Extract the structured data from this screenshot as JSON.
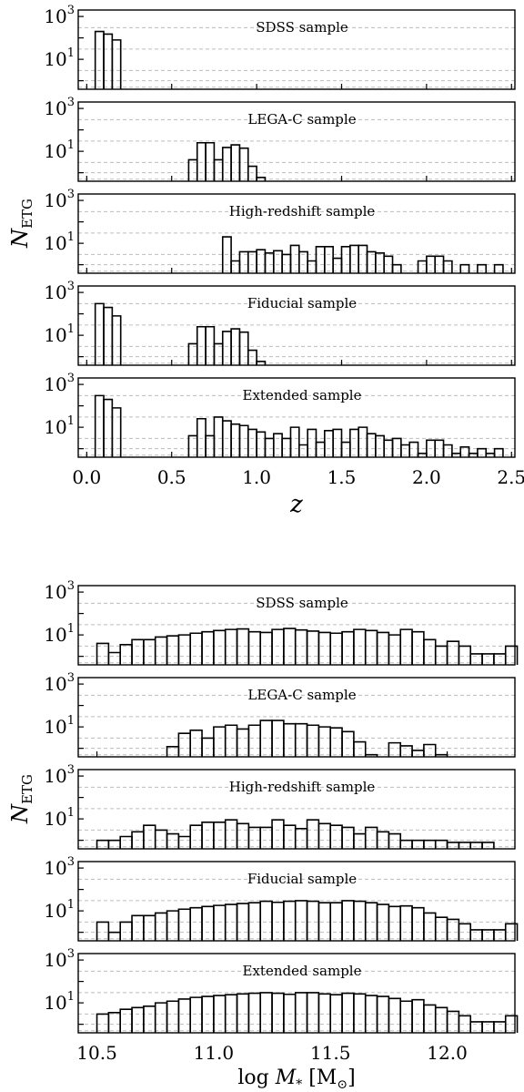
{
  "chart_data": [
    {
      "type": "histogram",
      "title": "",
      "xlabel": "z",
      "ylabel": "N_ETG",
      "ylabel_main": "N",
      "ylabel_sub": "ETG",
      "xlim": [
        -0.05,
        2.52
      ],
      "ylim": [
        0.4,
        2000
      ],
      "yscale": "log",
      "xticks": [
        "0.0",
        "0.5",
        "1.0",
        "1.5",
        "2.0",
        "2.5"
      ],
      "xtick_values": [
        0.0,
        0.5,
        1.0,
        1.5,
        2.0,
        2.5
      ],
      "ytick_labels": [
        {
          "base": "10",
          "exp": "1"
        },
        {
          "base": "10",
          "exp": "3"
        }
      ],
      "grid": "horizontal dashed",
      "bin_width": 0.05,
      "panels": [
        {
          "label": "SDSS sample",
          "bin_starts": [
            0.05,
            0.1,
            0.15
          ],
          "values": [
            200,
            150,
            80
          ]
        },
        {
          "label": "LEGA-C sample",
          "bin_starts": [
            0.6,
            0.65,
            0.7,
            0.75,
            0.8,
            0.85,
            0.9,
            0.95,
            1.0
          ],
          "values": [
            4,
            25,
            25,
            4,
            15,
            20,
            14,
            2,
            0.6
          ]
        },
        {
          "label": "High-redshift sample",
          "bin_starts": [
            0.8,
            0.85,
            0.9,
            0.95,
            1.0,
            1.05,
            1.1,
            1.15,
            1.2,
            1.25,
            1.3,
            1.35,
            1.4,
            1.45,
            1.5,
            1.55,
            1.6,
            1.65,
            1.7,
            1.75,
            1.8,
            1.85,
            1.9,
            1.95,
            2.0,
            2.05,
            2.1,
            2.15,
            2.2,
            2.25,
            2.3,
            2.35,
            2.4,
            2.45
          ],
          "values": [
            20,
            1.5,
            4,
            4,
            5,
            3.5,
            4.5,
            3,
            8,
            4,
            1.5,
            7,
            7,
            2,
            7,
            8,
            8,
            4,
            3.5,
            2.5,
            1,
            0,
            0,
            1.5,
            2.5,
            2.5,
            1.5,
            0,
            1,
            0,
            1,
            0,
            1,
            0
          ]
        },
        {
          "label": "Fiducial sample",
          "bin_starts": [
            0.05,
            0.1,
            0.15,
            0.6,
            0.65,
            0.7,
            0.75,
            0.8,
            0.85,
            0.9,
            0.95,
            1.0
          ],
          "values": [
            300,
            200,
            80,
            4,
            25,
            25,
            4,
            15,
            20,
            14,
            2,
            0.6
          ]
        },
        {
          "label": "Extended sample",
          "bin_starts": [
            0.05,
            0.1,
            0.15,
            0.6,
            0.65,
            0.7,
            0.75,
            0.8,
            0.85,
            0.9,
            0.95,
            1.0,
            1.05,
            1.1,
            1.15,
            1.2,
            1.25,
            1.3,
            1.35,
            1.4,
            1.45,
            1.5,
            1.55,
            1.6,
            1.65,
            1.7,
            1.75,
            1.8,
            1.85,
            1.9,
            1.95,
            2.0,
            2.05,
            2.1,
            2.15,
            2.2,
            2.25,
            2.3,
            2.35,
            2.4
          ],
          "values": [
            300,
            200,
            80,
            4,
            25,
            4,
            30,
            20,
            14,
            12,
            8,
            6,
            3,
            5,
            3,
            10,
            1.5,
            8,
            2,
            7,
            8,
            2,
            8,
            10,
            5,
            4,
            2.5,
            3,
            1.5,
            2,
            0.6,
            2.5,
            2.5,
            1.5,
            0.6,
            1.2,
            0.6,
            1,
            0.6,
            1
          ]
        }
      ]
    },
    {
      "type": "histogram",
      "title": "",
      "xlabel": "log M* [M_sun]",
      "xlabel_prefix": "log",
      "xlabel_var": "M",
      "xlabel_sub": "*",
      "xlabel_unit": "[M",
      "xlabel_unit_sub": "⊙",
      "xlabel_close": "]",
      "ylabel": "N_ETG",
      "ylabel_main": "N",
      "ylabel_sub": "ETG",
      "xlim": [
        10.42,
        12.29
      ],
      "ylim": [
        0.4,
        2000
      ],
      "yscale": "log",
      "xticks": [
        "10.5",
        "11.0",
        "11.5",
        "12.0"
      ],
      "xtick_values": [
        10.5,
        11.0,
        11.5,
        12.0
      ],
      "ytick_labels": [
        {
          "base": "10",
          "exp": "1"
        },
        {
          "base": "10",
          "exp": "3"
        }
      ],
      "grid": "horizontal dashed",
      "bin_width": 0.05,
      "bin_start": 10.5,
      "panels": [
        {
          "label": "SDSS sample",
          "values": [
            4,
            1.5,
            3.5,
            6,
            6,
            8,
            9,
            10,
            12,
            14,
            16,
            18,
            19,
            14,
            13,
            18,
            20,
            17,
            15,
            13,
            12,
            14,
            18,
            16,
            13,
            10,
            18,
            14,
            6,
            3,
            5,
            3,
            1.3,
            1.3,
            1.3,
            3
          ]
        },
        {
          "label": "LEGA-C sample",
          "values": [
            0,
            0,
            0,
            0,
            0,
            0,
            1.2,
            5,
            7,
            3,
            10,
            12,
            8,
            12,
            20,
            20,
            14,
            14,
            12,
            10,
            9,
            6,
            2,
            0.5,
            0,
            1.8,
            1.3,
            0.8,
            1.5,
            0.5
          ]
        },
        {
          "label": "High-redshift sample",
          "values": [
            1,
            1,
            1.5,
            2.5,
            5,
            3,
            2,
            1.5,
            5,
            7,
            7,
            9,
            6,
            4,
            4,
            9,
            5,
            3.5,
            9,
            6,
            5,
            4,
            2,
            4,
            2.5,
            2,
            1,
            1,
            1,
            1,
            0.8,
            0.8,
            0.8,
            0.8
          ]
        },
        {
          "label": "Fiducial sample",
          "values": [
            3,
            1,
            3,
            6,
            6,
            8,
            10,
            12,
            14,
            16,
            18,
            20,
            22,
            24,
            28,
            25,
            28,
            30,
            28,
            24,
            24,
            30,
            28,
            24,
            20,
            16,
            17,
            14,
            8,
            5,
            4,
            2.5,
            1.3,
            1.3,
            1.3,
            2.5
          ]
        },
        {
          "label": "Extended sample",
          "values": [
            3,
            3.5,
            5,
            6,
            7,
            10,
            12,
            15,
            18,
            20,
            22,
            24,
            26,
            28,
            30,
            28,
            25,
            30,
            30,
            26,
            24,
            28,
            26,
            22,
            20,
            16,
            12,
            14,
            8,
            6,
            4,
            2.5,
            1.3,
            1.3,
            1.3,
            2.5
          ]
        }
      ]
    }
  ]
}
